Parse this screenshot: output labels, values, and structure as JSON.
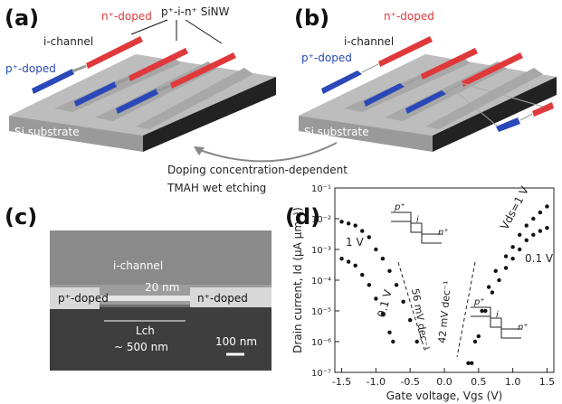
{
  "panel_a": {
    "label": "(a)",
    "p_doped": "p⁺-doped",
    "i_channel": "i-channel",
    "n_doped": "n⁺-doped",
    "nanowire": "p⁺-i-n⁺ SiNW",
    "substrate": "Si substrate"
  },
  "panel_b": {
    "label": "(b)",
    "p_doped": "p⁺-doped",
    "i_channel": "i-channel",
    "n_doped": "n⁺-doped",
    "substrate": "Si substrate"
  },
  "process": [
    "Doping concentration-dependent",
    "TMAH wet etching"
  ],
  "panel_c": {
    "label": "(c)",
    "i_channel": "i-channel",
    "width": "20 nm",
    "p_doped": "p⁺-doped",
    "n_doped": "n⁺-doped",
    "length_symbol": "Lch",
    "length": "~ 500 nm",
    "scale_bar": "100 nm"
  },
  "panel_d_label": "(d)",
  "chart_data": {
    "type": "scatter",
    "log_y": true,
    "x_label": "Gate voltage, Vgs (V)",
    "y_label": "Drain current, Id (μA μm⁻¹)",
    "xlim": [
      -1.6,
      1.6
    ],
    "ylim": [
      1e-07,
      0.1
    ],
    "xticks": [
      -1.5,
      {
        "value": -1.0,
        "label": "-1.0"
      },
      -0.5,
      {
        "value": 0,
        "label": "0.0"
      },
      0.5,
      {
        "value": 1.0,
        "label": "1.0"
      },
      1.5
    ],
    "yticks": [
      {
        "value": 1e-07,
        "label": "10⁻⁷"
      },
      {
        "value": 1e-06,
        "label": "10⁻⁶"
      },
      {
        "value": 1e-05,
        "label": "10⁻⁵"
      },
      {
        "value": 0.0001,
        "label": "10⁻⁴"
      },
      {
        "value": 0.001,
        "label": "10⁻³"
      },
      {
        "value": 0.01,
        "label": "10⁻²"
      },
      {
        "value": 0.1,
        "label": "10⁻¹"
      }
    ],
    "series": [
      {
        "name": "1 V",
        "color": "#111111",
        "x": [
          -1.5,
          -1.4,
          -1.3,
          -1.2,
          -1.1,
          -1.0,
          -0.9,
          -0.8,
          -0.7,
          -0.6,
          -0.5,
          -0.4
        ],
        "values": [
          0.008,
          0.007,
          0.006,
          0.004,
          0.0025,
          0.001,
          0.0005,
          0.0002,
          7e-05,
          2e-05,
          5e-06,
          1e-06
        ]
      },
      {
        "name": "0.1 V",
        "color": "#111111",
        "x": [
          -1.5,
          -1.4,
          -1.3,
          -1.2,
          -1.1,
          -1.0,
          -0.9,
          -0.8,
          -0.75
        ],
        "values": [
          0.0005,
          0.0004,
          0.0003,
          0.00015,
          7e-05,
          2.5e-05,
          8e-06,
          2e-06,
          1e-06
        ]
      },
      {
        "name": "Vds=1 V",
        "color": "#111111",
        "x": [
          0.35,
          0.45,
          0.55,
          0.65,
          0.75,
          0.9,
          1.0,
          1.1,
          1.2,
          1.3,
          1.4,
          1.5
        ],
        "values": [
          2e-07,
          1e-06,
          1e-05,
          6e-05,
          0.0002,
          0.0006,
          0.0012,
          0.003,
          0.006,
          0.01,
          0.016,
          0.025
        ]
      },
      {
        "name": "0.1 V",
        "color": "#111111",
        "x": [
          0.4,
          0.5,
          0.6,
          0.7,
          0.8,
          0.9,
          1.0,
          1.1,
          1.2,
          1.3,
          1.4,
          1.5
        ],
        "values": [
          2e-07,
          1.5e-06,
          1e-05,
          4e-05,
          0.0001,
          0.00025,
          0.0005,
          0.001,
          0.002,
          0.003,
          0.004,
          0.005
        ]
      }
    ],
    "annotations": [
      "56 mV dec⁻¹",
      "42 mV dec⁻¹"
    ],
    "insets": [
      [
        "p⁺",
        "i",
        "n⁺"
      ],
      [
        "p⁺",
        "i",
        "n⁺"
      ]
    ]
  }
}
